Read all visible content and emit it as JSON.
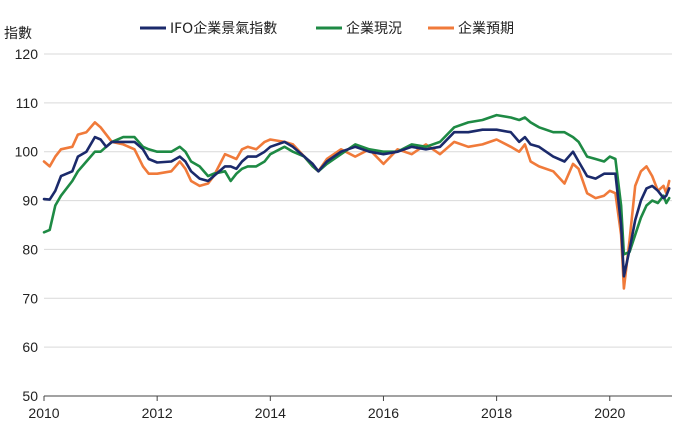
{
  "chart_data": {
    "type": "line",
    "ylabel": "指數",
    "ylim": [
      50,
      120
    ],
    "xlim": [
      2010,
      2021.1
    ],
    "y_ticks": [
      "50",
      "60",
      "70",
      "80",
      "90",
      "100",
      "110",
      "120"
    ],
    "x_ticks": [
      "2010",
      "2012",
      "2014",
      "2016",
      "2018",
      "2020"
    ],
    "grid": "horizontal",
    "legend_position": "top",
    "series": [
      {
        "name": "IFO企業景氣指數",
        "color": "#1b2a6b",
        "points": [
          [
            2010.0,
            90.3
          ],
          [
            2010.1,
            90.2
          ],
          [
            2010.2,
            92.0
          ],
          [
            2010.3,
            95.0
          ],
          [
            2010.5,
            96.0
          ],
          [
            2010.6,
            99.0
          ],
          [
            2010.75,
            100.0
          ],
          [
            2010.9,
            103.0
          ],
          [
            2011.0,
            102.5
          ],
          [
            2011.1,
            101.0
          ],
          [
            2011.2,
            102.0
          ],
          [
            2011.4,
            102.0
          ],
          [
            2011.6,
            102.0
          ],
          [
            2011.75,
            100.5
          ],
          [
            2011.85,
            98.5
          ],
          [
            2012.0,
            97.8
          ],
          [
            2012.25,
            98.0
          ],
          [
            2012.4,
            99.0
          ],
          [
            2012.5,
            98.0
          ],
          [
            2012.6,
            96.0
          ],
          [
            2012.75,
            94.5
          ],
          [
            2012.9,
            94.0
          ],
          [
            2013.0,
            95.0
          ],
          [
            2013.2,
            97.0
          ],
          [
            2013.3,
            97.0
          ],
          [
            2013.4,
            96.5
          ],
          [
            2013.5,
            98.0
          ],
          [
            2013.6,
            99.0
          ],
          [
            2013.75,
            99.0
          ],
          [
            2013.9,
            100.0
          ],
          [
            2014.0,
            101.0
          ],
          [
            2014.25,
            102.0
          ],
          [
            2014.4,
            101.0
          ],
          [
            2014.6,
            99.0
          ],
          [
            2014.75,
            97.5
          ],
          [
            2014.85,
            96.0
          ],
          [
            2015.0,
            98.0
          ],
          [
            2015.25,
            100.0
          ],
          [
            2015.5,
            101.0
          ],
          [
            2015.75,
            100.0
          ],
          [
            2016.0,
            99.5
          ],
          [
            2016.25,
            100.0
          ],
          [
            2016.5,
            101.0
          ],
          [
            2016.75,
            100.5
          ],
          [
            2017.0,
            101.0
          ],
          [
            2017.25,
            104.0
          ],
          [
            2017.5,
            104.0
          ],
          [
            2017.75,
            104.5
          ],
          [
            2018.0,
            104.5
          ],
          [
            2018.25,
            104.0
          ],
          [
            2018.4,
            102.0
          ],
          [
            2018.5,
            103.0
          ],
          [
            2018.6,
            101.5
          ],
          [
            2018.75,
            101.0
          ],
          [
            2019.0,
            99.0
          ],
          [
            2019.2,
            98.0
          ],
          [
            2019.35,
            100.0
          ],
          [
            2019.45,
            98.0
          ],
          [
            2019.6,
            95.0
          ],
          [
            2019.75,
            94.5
          ],
          [
            2019.9,
            95.5
          ],
          [
            2020.0,
            95.5
          ],
          [
            2020.1,
            95.5
          ],
          [
            2020.2,
            85.0
          ],
          [
            2020.25,
            74.5
          ],
          [
            2020.35,
            80.0
          ],
          [
            2020.45,
            86.0
          ],
          [
            2020.55,
            90.0
          ],
          [
            2020.65,
            92.5
          ],
          [
            2020.75,
            93.0
          ],
          [
            2020.85,
            92.0
          ],
          [
            2020.95,
            90.5
          ],
          [
            2021.0,
            91.0
          ],
          [
            2021.05,
            92.5
          ]
        ]
      },
      {
        "name": "企業現況",
        "color": "#1e8a44",
        "points": [
          [
            2010.0,
            83.5
          ],
          [
            2010.1,
            84.0
          ],
          [
            2010.2,
            89.0
          ],
          [
            2010.3,
            91.0
          ],
          [
            2010.5,
            94.0
          ],
          [
            2010.6,
            96.0
          ],
          [
            2010.75,
            98.0
          ],
          [
            2010.9,
            100.0
          ],
          [
            2011.0,
            100.0
          ],
          [
            2011.1,
            101.0
          ],
          [
            2011.2,
            102.0
          ],
          [
            2011.4,
            103.0
          ],
          [
            2011.6,
            103.0
          ],
          [
            2011.75,
            101.0
          ],
          [
            2011.85,
            100.5
          ],
          [
            2012.0,
            100.0
          ],
          [
            2012.25,
            100.0
          ],
          [
            2012.4,
            101.0
          ],
          [
            2012.5,
            100.0
          ],
          [
            2012.6,
            98.0
          ],
          [
            2012.75,
            97.0
          ],
          [
            2012.9,
            95.0
          ],
          [
            2013.0,
            95.5
          ],
          [
            2013.2,
            96.0
          ],
          [
            2013.3,
            94.0
          ],
          [
            2013.4,
            95.5
          ],
          [
            2013.5,
            96.5
          ],
          [
            2013.6,
            97.0
          ],
          [
            2013.75,
            97.0
          ],
          [
            2013.9,
            98.0
          ],
          [
            2014.0,
            99.5
          ],
          [
            2014.25,
            101.0
          ],
          [
            2014.4,
            100.0
          ],
          [
            2014.6,
            99.0
          ],
          [
            2014.75,
            97.0
          ],
          [
            2014.85,
            96.0
          ],
          [
            2015.0,
            97.5
          ],
          [
            2015.25,
            99.5
          ],
          [
            2015.5,
            101.5
          ],
          [
            2015.75,
            100.5
          ],
          [
            2016.0,
            100.0
          ],
          [
            2016.25,
            100.0
          ],
          [
            2016.5,
            101.5
          ],
          [
            2016.75,
            101.0
          ],
          [
            2017.0,
            102.0
          ],
          [
            2017.25,
            105.0
          ],
          [
            2017.5,
            106.0
          ],
          [
            2017.75,
            106.5
          ],
          [
            2018.0,
            107.5
          ],
          [
            2018.25,
            107.0
          ],
          [
            2018.4,
            106.5
          ],
          [
            2018.5,
            107.0
          ],
          [
            2018.6,
            106.0
          ],
          [
            2018.75,
            105.0
          ],
          [
            2019.0,
            104.0
          ],
          [
            2019.2,
            104.0
          ],
          [
            2019.35,
            103.0
          ],
          [
            2019.45,
            102.0
          ],
          [
            2019.6,
            99.0
          ],
          [
            2019.75,
            98.5
          ],
          [
            2019.9,
            98.0
          ],
          [
            2020.0,
            99.0
          ],
          [
            2020.1,
            98.5
          ],
          [
            2020.2,
            89.0
          ],
          [
            2020.25,
            79.0
          ],
          [
            2020.35,
            79.5
          ],
          [
            2020.45,
            83.0
          ],
          [
            2020.55,
            86.5
          ],
          [
            2020.65,
            89.0
          ],
          [
            2020.75,
            90.0
          ],
          [
            2020.85,
            89.5
          ],
          [
            2020.95,
            91.0
          ],
          [
            2021.0,
            89.5
          ],
          [
            2021.05,
            90.5
          ]
        ]
      },
      {
        "name": "企業預期",
        "color": "#f07a3a",
        "points": [
          [
            2010.0,
            98.0
          ],
          [
            2010.1,
            97.0
          ],
          [
            2010.2,
            99.0
          ],
          [
            2010.3,
            100.5
          ],
          [
            2010.5,
            101.0
          ],
          [
            2010.6,
            103.5
          ],
          [
            2010.75,
            104.0
          ],
          [
            2010.9,
            106.0
          ],
          [
            2011.0,
            105.0
          ],
          [
            2011.1,
            103.5
          ],
          [
            2011.2,
            102.0
          ],
          [
            2011.4,
            101.5
          ],
          [
            2011.6,
            100.5
          ],
          [
            2011.75,
            97.0
          ],
          [
            2011.85,
            95.5
          ],
          [
            2012.0,
            95.5
          ],
          [
            2012.25,
            96.0
          ],
          [
            2012.4,
            98.0
          ],
          [
            2012.5,
            96.5
          ],
          [
            2012.6,
            94.0
          ],
          [
            2012.75,
            93.0
          ],
          [
            2012.9,
            93.5
          ],
          [
            2013.0,
            95.0
          ],
          [
            2013.2,
            99.5
          ],
          [
            2013.3,
            99.0
          ],
          [
            2013.4,
            98.5
          ],
          [
            2013.5,
            100.5
          ],
          [
            2013.6,
            101.0
          ],
          [
            2013.75,
            100.5
          ],
          [
            2013.9,
            102.0
          ],
          [
            2014.0,
            102.5
          ],
          [
            2014.25,
            102.0
          ],
          [
            2014.4,
            101.5
          ],
          [
            2014.6,
            99.0
          ],
          [
            2014.75,
            97.0
          ],
          [
            2014.85,
            96.0
          ],
          [
            2015.0,
            98.5
          ],
          [
            2015.25,
            100.5
          ],
          [
            2015.5,
            99.0
          ],
          [
            2015.75,
            100.5
          ],
          [
            2016.0,
            97.5
          ],
          [
            2016.25,
            100.5
          ],
          [
            2016.5,
            99.5
          ],
          [
            2016.75,
            101.5
          ],
          [
            2017.0,
            99.5
          ],
          [
            2017.25,
            102.0
          ],
          [
            2017.5,
            101.0
          ],
          [
            2017.75,
            101.5
          ],
          [
            2018.0,
            102.5
          ],
          [
            2018.25,
            101.0
          ],
          [
            2018.4,
            100.0
          ],
          [
            2018.5,
            101.5
          ],
          [
            2018.6,
            98.0
          ],
          [
            2018.75,
            97.0
          ],
          [
            2019.0,
            96.0
          ],
          [
            2019.2,
            93.5
          ],
          [
            2019.35,
            97.5
          ],
          [
            2019.45,
            96.5
          ],
          [
            2019.6,
            91.5
          ],
          [
            2019.75,
            90.5
          ],
          [
            2019.9,
            91.0
          ],
          [
            2020.0,
            92.0
          ],
          [
            2020.1,
            91.5
          ],
          [
            2020.2,
            83.0
          ],
          [
            2020.25,
            72.0
          ],
          [
            2020.35,
            82.0
          ],
          [
            2020.45,
            93.0
          ],
          [
            2020.55,
            96.0
          ],
          [
            2020.65,
            97.0
          ],
          [
            2020.75,
            95.0
          ],
          [
            2020.85,
            92.0
          ],
          [
            2020.95,
            93.0
          ],
          [
            2021.0,
            91.5
          ],
          [
            2021.05,
            94.0
          ]
        ]
      }
    ]
  }
}
